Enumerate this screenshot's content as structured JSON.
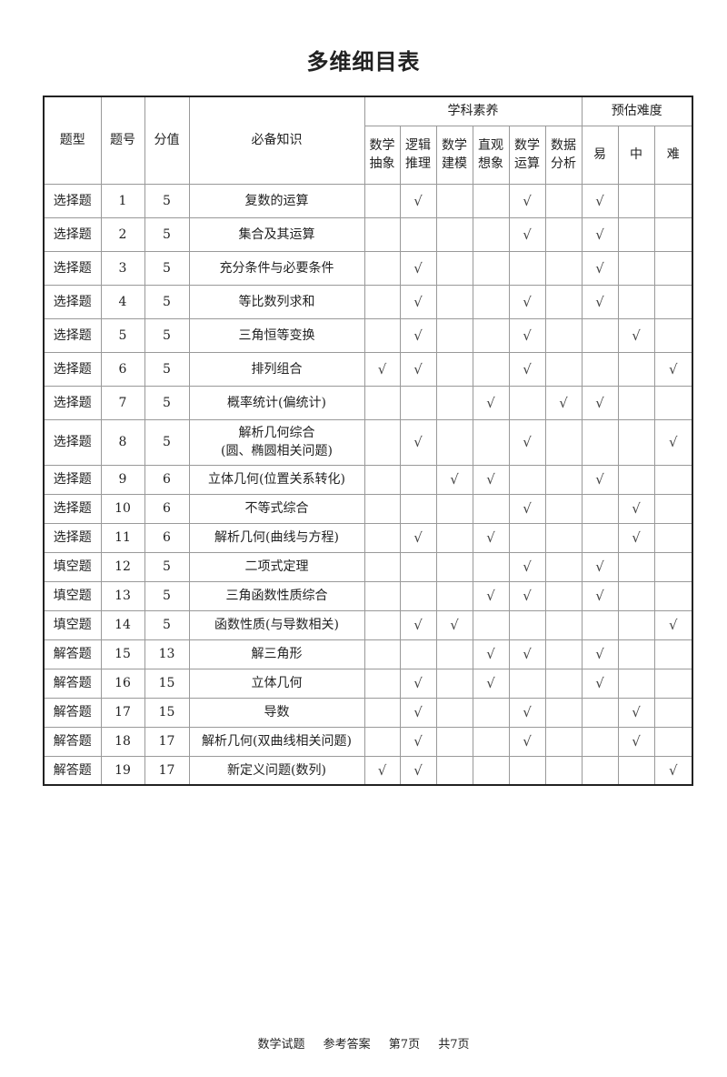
{
  "title": "多维细目表",
  "check_symbol": "√",
  "headers": {
    "type": "题型",
    "number": "题号",
    "score": "分值",
    "knowledge": "必备知识",
    "literacy_group": "学科素养",
    "difficulty_group": "预估难度",
    "literacy": [
      "数学\n抽象",
      "逻辑\n推理",
      "数学\n建模",
      "直观\n想象",
      "数学\n运算",
      "数据\n分析"
    ],
    "difficulty": [
      "易",
      "中",
      "难"
    ]
  },
  "rows": [
    {
      "type": "选择题",
      "num": "1",
      "score": "5",
      "knowledge": "复数的运算",
      "marks": [
        0,
        1,
        0,
        0,
        1,
        0,
        1,
        0,
        0
      ]
    },
    {
      "type": "选择题",
      "num": "2",
      "score": "5",
      "knowledge": "集合及其运算",
      "marks": [
        0,
        0,
        0,
        0,
        1,
        0,
        1,
        0,
        0
      ]
    },
    {
      "type": "选择题",
      "num": "3",
      "score": "5",
      "knowledge": "充分条件与必要条件",
      "marks": [
        0,
        1,
        0,
        0,
        0,
        0,
        1,
        0,
        0
      ]
    },
    {
      "type": "选择题",
      "num": "4",
      "score": "5",
      "knowledge": "等比数列求和",
      "marks": [
        0,
        1,
        0,
        0,
        1,
        0,
        1,
        0,
        0
      ]
    },
    {
      "type": "选择题",
      "num": "5",
      "score": "5",
      "knowledge": "三角恒等变换",
      "marks": [
        0,
        1,
        0,
        0,
        1,
        0,
        0,
        1,
        0
      ]
    },
    {
      "type": "选择题",
      "num": "6",
      "score": "5",
      "knowledge": "排列组合",
      "marks": [
        1,
        1,
        0,
        0,
        1,
        0,
        0,
        0,
        1
      ]
    },
    {
      "type": "选择题",
      "num": "7",
      "score": "5",
      "knowledge": "概率统计(偏统计)",
      "marks": [
        0,
        0,
        0,
        1,
        0,
        1,
        1,
        0,
        0
      ]
    },
    {
      "type": "选择题",
      "num": "8",
      "score": "5",
      "knowledge": "解析几何综合\n(圆、椭圆相关问题)",
      "marks": [
        0,
        1,
        0,
        0,
        1,
        0,
        0,
        0,
        1
      ]
    },
    {
      "type": "选择题",
      "num": "9",
      "score": "6",
      "knowledge": "立体几何(位置关系转化)",
      "marks": [
        0,
        0,
        1,
        1,
        0,
        0,
        1,
        0,
        0
      ]
    },
    {
      "type": "选择题",
      "num": "10",
      "score": "6",
      "knowledge": "不等式综合",
      "marks": [
        0,
        0,
        0,
        0,
        1,
        0,
        0,
        1,
        0
      ]
    },
    {
      "type": "选择题",
      "num": "11",
      "score": "6",
      "knowledge": "解析几何(曲线与方程)",
      "marks": [
        0,
        1,
        0,
        1,
        0,
        0,
        0,
        1,
        0
      ]
    },
    {
      "type": "填空题",
      "num": "12",
      "score": "5",
      "knowledge": "二项式定理",
      "marks": [
        0,
        0,
        0,
        0,
        1,
        0,
        1,
        0,
        0
      ]
    },
    {
      "type": "填空题",
      "num": "13",
      "score": "5",
      "knowledge": "三角函数性质综合",
      "marks": [
        0,
        0,
        0,
        1,
        1,
        0,
        1,
        0,
        0
      ]
    },
    {
      "type": "填空题",
      "num": "14",
      "score": "5",
      "knowledge": "函数性质(与导数相关)",
      "marks": [
        0,
        1,
        1,
        0,
        0,
        0,
        0,
        0,
        1
      ]
    },
    {
      "type": "解答题",
      "num": "15",
      "score": "13",
      "knowledge": "解三角形",
      "marks": [
        0,
        0,
        0,
        1,
        1,
        0,
        1,
        0,
        0
      ]
    },
    {
      "type": "解答题",
      "num": "16",
      "score": "15",
      "knowledge": "立体几何",
      "marks": [
        0,
        1,
        0,
        1,
        0,
        0,
        1,
        0,
        0
      ]
    },
    {
      "type": "解答题",
      "num": "17",
      "score": "15",
      "knowledge": "导数",
      "marks": [
        0,
        1,
        0,
        0,
        1,
        0,
        0,
        1,
        0
      ]
    },
    {
      "type": "解答题",
      "num": "18",
      "score": "17",
      "knowledge": "解析几何(双曲线相关问题)",
      "marks": [
        0,
        1,
        0,
        0,
        1,
        0,
        0,
        1,
        0
      ]
    },
    {
      "type": "解答题",
      "num": "19",
      "score": "17",
      "knowledge": "新定义问题(数列)",
      "marks": [
        1,
        1,
        0,
        0,
        0,
        0,
        0,
        0,
        1
      ]
    }
  ],
  "footer": [
    "数学试题",
    "参考答案",
    "第7页",
    "共7页"
  ]
}
